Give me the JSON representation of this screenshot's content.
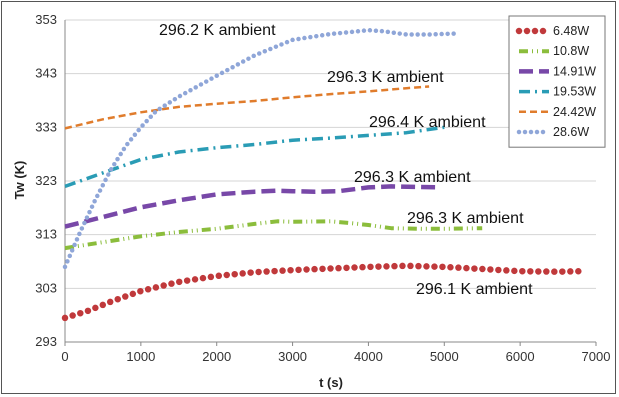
{
  "chart_data": {
    "type": "line",
    "title": "",
    "xlabel": "t (s)",
    "ylabel": "Tw (K)",
    "xlim": [
      0,
      7000
    ],
    "ylim": [
      293,
      353
    ],
    "xticks": [
      0,
      1000,
      2000,
      3000,
      4000,
      5000,
      6000,
      7000
    ],
    "yticks": [
      293,
      303,
      313,
      323,
      333,
      343,
      353
    ],
    "grid": "horizontal",
    "legend_position": "top-right",
    "series": [
      {
        "name": "6.48W",
        "color": "#c0393b",
        "dash": "round-dots-thick",
        "x": [
          0,
          300,
          600,
          1000,
          1500,
          2000,
          2500,
          3000,
          3500,
          4000,
          4500,
          5000,
          5500,
          6000,
          6500,
          6800
        ],
        "y": [
          297.5,
          298.8,
          300.5,
          302.5,
          304.2,
          305.3,
          306.0,
          306.4,
          306.7,
          307.0,
          307.2,
          307.0,
          306.6,
          306.2,
          306.1,
          306.2
        ]
      },
      {
        "name": "10.8W",
        "color": "#8bbd3c",
        "dash": "dash-dot-dot",
        "x": [
          0,
          500,
          1000,
          1500,
          2000,
          2500,
          2800,
          3000,
          3500,
          3800,
          4000,
          4300,
          4700,
          5000,
          5500
        ],
        "y": [
          310.5,
          311.6,
          312.7,
          313.5,
          314.1,
          315.0,
          315.5,
          315.4,
          315.5,
          315.1,
          314.8,
          314.2,
          314.1,
          314.1,
          314.2
        ]
      },
      {
        "name": "14.91W",
        "color": "#7848a8",
        "dash": "long-dash",
        "x": [
          0,
          500,
          1000,
          1500,
          2000,
          2500,
          2800,
          3000,
          3300,
          3600,
          4000,
          4300,
          4600,
          4950
        ],
        "y": [
          314.5,
          316.3,
          318.1,
          319.4,
          320.5,
          321.0,
          321.2,
          321.1,
          321.0,
          321.1,
          321.8,
          322.0,
          321.9,
          321.8
        ]
      },
      {
        "name": "19.53W",
        "color": "#2a9cb5",
        "dash": "dash-dot",
        "x": [
          0,
          500,
          1000,
          1500,
          2000,
          2500,
          3000,
          3500,
          4000,
          4500,
          5000
        ],
        "y": [
          322.0,
          324.5,
          327.0,
          328.4,
          329.2,
          329.8,
          330.6,
          331.0,
          331.5,
          332.0,
          333.0
        ]
      },
      {
        "name": "24.42W",
        "color": "#e07c2c",
        "dash": "short-dash",
        "x": [
          0,
          500,
          1000,
          1500,
          2000,
          2500,
          3000,
          3500,
          4000,
          4500,
          4800
        ],
        "y": [
          332.8,
          334.5,
          335.8,
          336.8,
          337.4,
          337.9,
          338.6,
          339.2,
          339.7,
          340.3,
          340.6
        ]
      },
      {
        "name": "28.6W",
        "color": "#8fa6d8",
        "dash": "round-dots",
        "x": [
          0,
          200,
          400,
          600,
          800,
          1000,
          1200,
          1500,
          2000,
          2500,
          3000,
          3500,
          3800,
          4000,
          4200,
          4500,
          4800,
          5200
        ],
        "y": [
          307.0,
          313.5,
          319.5,
          325.0,
          329.5,
          333.0,
          336.0,
          338.7,
          342.6,
          346.4,
          349.3,
          350.4,
          350.8,
          351.1,
          350.9,
          350.3,
          350.3,
          350.5
        ]
      }
    ],
    "annotations": [
      {
        "text": "296.2 K ambient"
      },
      {
        "text": "296.3 K ambient"
      },
      {
        "text": "296.4 K ambient"
      },
      {
        "text": "296.3 K ambient"
      },
      {
        "text": "296.3 K ambient"
      },
      {
        "text": "296.1 K ambient"
      }
    ]
  }
}
